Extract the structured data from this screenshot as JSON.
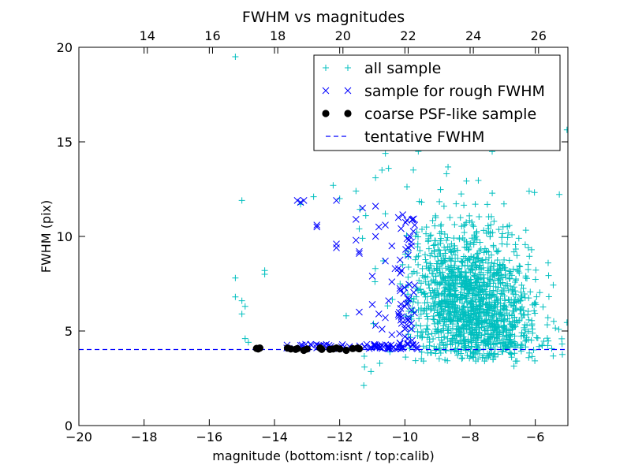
{
  "chart_data": {
    "type": "scatter",
    "title": "FWHM vs magnitudes",
    "xlabel": "magnitude (bottom:isnt / top:calib)",
    "ylabel": "FWHM (pix)",
    "xlim": [
      -20,
      -5
    ],
    "ylim": [
      0,
      20
    ],
    "x_ticks": [
      -20,
      -18,
      -16,
      -14,
      -12,
      -10,
      -8,
      -6
    ],
    "x_tick_labels": [
      "−20",
      "−18",
      "−16",
      "−14",
      "−12",
      "−10",
      "−8",
      "−6"
    ],
    "y_ticks": [
      0,
      5,
      10,
      15,
      20
    ],
    "y_tick_labels": [
      "0",
      "5",
      "10",
      "15",
      "20"
    ],
    "top_axis": {
      "offset": 31.9,
      "ticks": [
        14,
        16,
        18,
        20,
        22,
        24,
        26
      ],
      "tick_labels": [
        "14",
        "16",
        "18",
        "20",
        "22",
        "24",
        "26"
      ]
    },
    "grid": false,
    "legend_position": "top-right",
    "series": [
      {
        "name": "all sample",
        "marker": "plus",
        "color": "#00bfbf",
        "points": [
          [
            -15.2,
            19.5
          ],
          [
            -15.0,
            11.9
          ],
          [
            -15.2,
            7.8
          ],
          [
            -15.2,
            6.8
          ],
          [
            -15.0,
            6.6
          ],
          [
            -14.9,
            6.3
          ],
          [
            -15.0,
            5.9
          ],
          [
            -14.8,
            4.4
          ],
          [
            -14.9,
            4.6
          ],
          [
            -14.3,
            8.2
          ],
          [
            -14.3,
            8.0
          ],
          [
            -13.2,
            11.7
          ],
          [
            -12.8,
            12.1
          ],
          [
            -12.2,
            12.7
          ],
          [
            -12.0,
            12.0
          ],
          [
            -11.5,
            12.4
          ],
          [
            -11.2,
            11.1
          ],
          [
            -11.3,
            9.9
          ],
          [
            -11.4,
            10.4
          ],
          [
            -11.8,
            5.8
          ],
          [
            -10.6,
            11.2
          ],
          [
            -10.9,
            13.1
          ],
          [
            -10.5,
            13.6
          ]
        ],
        "cloud": {
          "count": 1500,
          "center": [
            -7.9,
            6.4
          ],
          "spread": [
            0.95,
            2.0
          ],
          "xmin": -10.0,
          "xmax": -5.0,
          "ymin": 3.4,
          "ymax": 16.5,
          "seed": 7
        },
        "extras": {
          "count": 60,
          "xmin": -11.5,
          "xmax": -5.0,
          "ymin": 2.0,
          "ymax": 19.8,
          "seed": 13
        }
      },
      {
        "name": "sample for rough FWHM",
        "marker": "x",
        "color": "#0000ff",
        "points": [
          [
            -13.3,
            11.9
          ],
          [
            -13.2,
            11.8
          ],
          [
            -13.1,
            11.9
          ],
          [
            -12.7,
            10.6
          ],
          [
            -12.7,
            10.5
          ],
          [
            -11.5,
            10.9
          ],
          [
            -11.5,
            9.8
          ],
          [
            -12.1,
            9.6
          ],
          [
            -12.1,
            9.4
          ],
          [
            -11.4,
            9.2
          ],
          [
            -11.4,
            9.1
          ],
          [
            -12.1,
            11.9
          ],
          [
            -10.9,
            11.6
          ],
          [
            -11.3,
            11.5
          ],
          [
            -10.9,
            10.0
          ],
          [
            -10.2,
            11.0
          ],
          [
            -10.8,
            10.5
          ],
          [
            -10.6,
            10.6
          ],
          [
            -10.4,
            9.5
          ],
          [
            -10.6,
            8.7
          ],
          [
            -10.3,
            8.3
          ],
          [
            -10.1,
            8.2
          ],
          [
            -10.2,
            8.3
          ],
          [
            -10.5,
            6.6
          ],
          [
            -10.4,
            7.6
          ],
          [
            -10.0,
            6.3
          ],
          [
            -11.0,
            7.9
          ],
          [
            -11.0,
            6.4
          ],
          [
            -10.8,
            5.9
          ],
          [
            -10.7,
            5.1
          ],
          [
            -10.1,
            5.4
          ],
          [
            -10.4,
            4.8
          ],
          [
            -11.4,
            6.0
          ],
          [
            -10.6,
            5.7
          ],
          [
            -10.9,
            5.3
          ],
          [
            -9.9,
            5.6
          ],
          [
            -9.7,
            7.4
          ],
          [
            -9.8,
            6.1
          ],
          [
            -9.8,
            5.4
          ],
          [
            -9.8,
            9.7
          ],
          [
            -9.8,
            9.5
          ],
          [
            -9.9,
            9.0
          ],
          [
            -9.7,
            10.6
          ],
          [
            -10.0,
            4.7
          ],
          [
            -10.0,
            5.1
          ]
        ],
        "column": {
          "count": 45,
          "xmin": -10.2,
          "xmax": -9.7,
          "ymin": 4.3,
          "ymax": 11.5,
          "seed": 19
        },
        "band": {
          "count": 70,
          "xmin": -13.8,
          "xmax": -9.6,
          "ymin": 4.05,
          "ymax": 4.3,
          "seed": 23
        }
      },
      {
        "name": "coarse PSF-like sample",
        "marker": "circle",
        "color": "#000000",
        "points": [
          [
            -14.55,
            4.08
          ],
          [
            -14.45,
            4.1
          ],
          [
            -14.5,
            4.05
          ],
          [
            -13.6,
            4.1
          ],
          [
            -13.5,
            4.05
          ],
          [
            -13.3,
            4.07
          ],
          [
            -13.35,
            4.03
          ],
          [
            -13.1,
            3.98
          ],
          [
            -13.0,
            4.05
          ],
          [
            -12.6,
            4.1
          ],
          [
            -12.55,
            4.03
          ],
          [
            -12.3,
            4.03
          ],
          [
            -12.2,
            4.05
          ],
          [
            -12.1,
            4.1
          ],
          [
            -12.0,
            4.05
          ],
          [
            -11.8,
            3.98
          ],
          [
            -11.6,
            4.07
          ],
          [
            -11.45,
            4.1
          ],
          [
            -11.4,
            4.06
          ]
        ]
      },
      {
        "name": "tentative FWHM",
        "marker": "dashed-line",
        "color": "#0000ff",
        "y": 4.02
      }
    ]
  }
}
